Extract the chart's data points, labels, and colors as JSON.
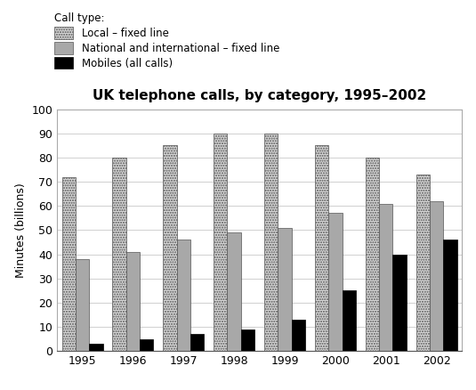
{
  "title": "UK telephone calls, by category, 1995–2002",
  "ylabel": "Minutes (billions)",
  "years": [
    1995,
    1996,
    1997,
    1998,
    1999,
    2000,
    2001,
    2002
  ],
  "local_fixed": [
    72,
    80,
    85,
    90,
    90,
    85,
    80,
    73
  ],
  "national_fixed": [
    38,
    41,
    46,
    49,
    51,
    57,
    61,
    62
  ],
  "mobiles": [
    3,
    5,
    7,
    9,
    13,
    25,
    40,
    46
  ],
  "ylim": [
    0,
    100
  ],
  "yticks": [
    0,
    10,
    20,
    30,
    40,
    50,
    60,
    70,
    80,
    90,
    100
  ],
  "legend_labels": [
    "Local – fixed line",
    "National and international – fixed line",
    "Mobiles (all calls)"
  ],
  "color_local": "#c8c8c8",
  "color_national": "#a0a0a0",
  "color_mobiles": "#000000",
  "bar_width": 0.27,
  "background_color": "#ffffff",
  "grid_color": "#d0d0d0",
  "legend_title": "Call type:"
}
